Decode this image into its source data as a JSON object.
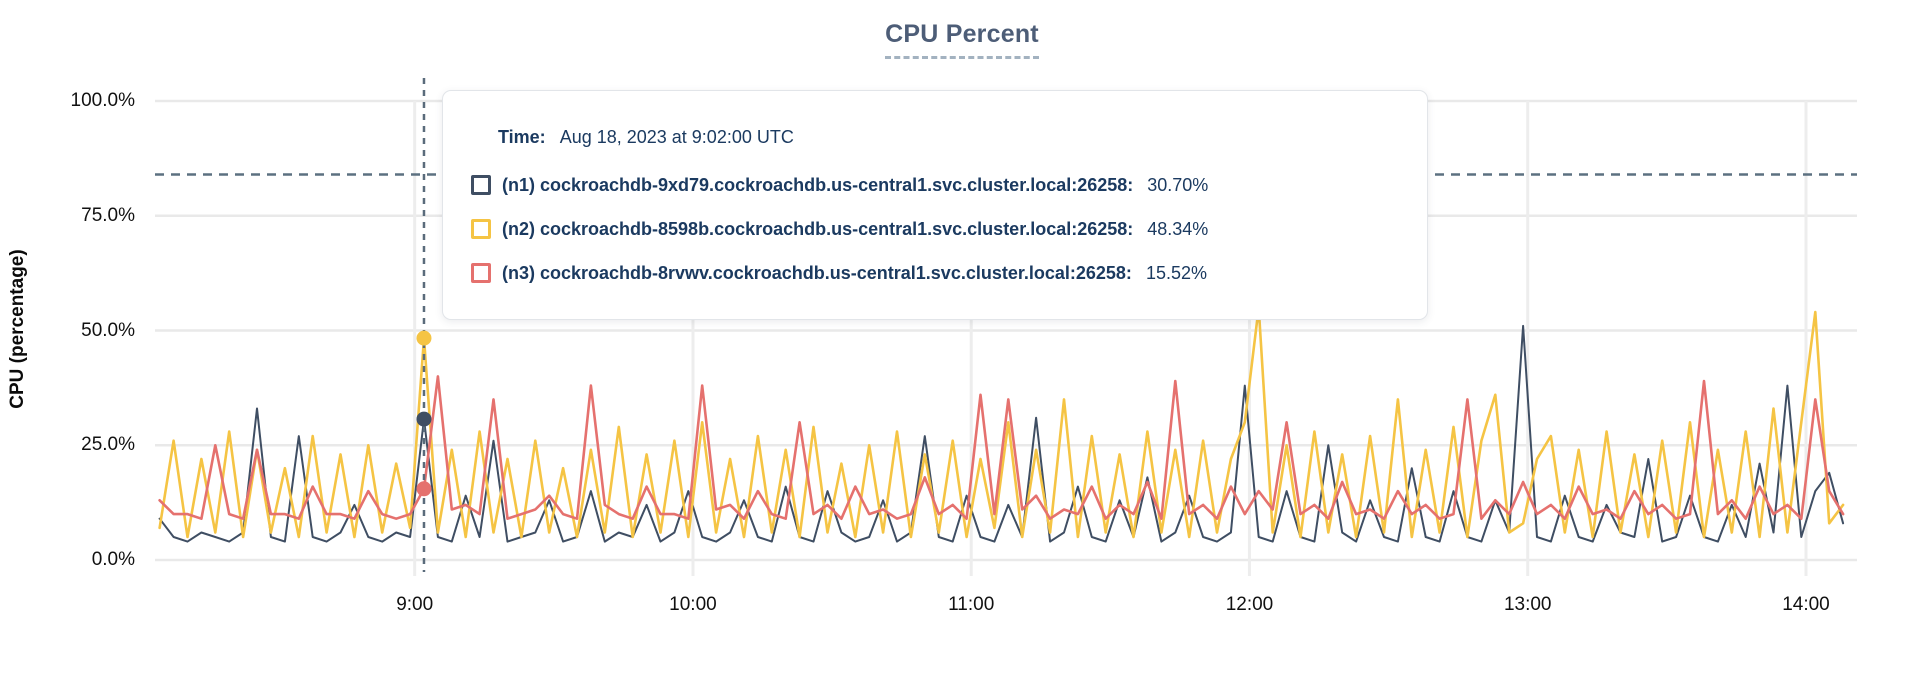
{
  "page": {
    "title": "CPU Percent"
  },
  "tooltip": {
    "time_label": "Time:",
    "time_value": "Aug 18, 2023 at 9:02:00 UTC",
    "rows": [
      {
        "label": "(n1) cockroachdb-9xd79.cockroachdb.us-central1.svc.cluster.local:26258:",
        "value": "30.70%"
      },
      {
        "label": "(n2) cockroachdb-8598b.cockroachdb.us-central1.svc.cluster.local:26258:",
        "value": "48.34%"
      },
      {
        "label": "(n3) cockroachdb-8rvwv.cockroachdb.us-central1.svc.cluster.local:26258:",
        "value": "15.52%"
      }
    ]
  },
  "chart_data": {
    "type": "line",
    "title": "CPU Percent",
    "xlabel": "",
    "ylabel": "CPU (percentage)",
    "ylim": [
      0,
      100
    ],
    "grid": true,
    "y_ticks": [
      {
        "value": 100,
        "label": "100.0%"
      },
      {
        "value": 75,
        "label": "75.0%"
      },
      {
        "value": 50,
        "label": "50.0%"
      },
      {
        "value": 25,
        "label": "25.0%"
      },
      {
        "value": 0,
        "label": "0.0%"
      }
    ],
    "x_ticks": [
      {
        "minutes": 540,
        "label": "9:00"
      },
      {
        "minutes": 600,
        "label": "10:00"
      },
      {
        "minutes": 660,
        "label": "11:00"
      },
      {
        "minutes": 720,
        "label": "12:00"
      },
      {
        "minutes": 780,
        "label": "13:00"
      },
      {
        "minutes": 840,
        "label": "14:00"
      }
    ],
    "x_domain_minutes": [
      484,
      851
    ],
    "x_start_minutes": 485,
    "x_step_minutes": 3,
    "threshold": {
      "value": 84,
      "style": "dashed",
      "color": "#5c7080"
    },
    "cursor": {
      "minutes": 542,
      "time": "9:02",
      "color": "#5a6b7b"
    },
    "legend_position": "tooltip",
    "series": [
      {
        "id": "n1",
        "name": "(n1) cockroachdb-9xd79.cockroachdb.us-central1.svc.cluster.local:26258",
        "color": "#3f4e63",
        "cursor_value": 30.7,
        "values": [
          9,
          5,
          4,
          6,
          5,
          4,
          6,
          33,
          5,
          4,
          27,
          5,
          4,
          6,
          12,
          5,
          4,
          6,
          5,
          30.7,
          5,
          4,
          14,
          5,
          26,
          4,
          5,
          6,
          13,
          4,
          5,
          15,
          4,
          6,
          5,
          12,
          4,
          6,
          15,
          5,
          4,
          6,
          13,
          5,
          4,
          16,
          5,
          4,
          15,
          6,
          4,
          5,
          13,
          4,
          6,
          27,
          5,
          4,
          14,
          5,
          4,
          12,
          5,
          31,
          4,
          6,
          16,
          5,
          4,
          13,
          5,
          18,
          4,
          6,
          14,
          5,
          4,
          6,
          38,
          5,
          4,
          15,
          5,
          4,
          25,
          6,
          4,
          13,
          5,
          4,
          20,
          5,
          4,
          15,
          5,
          4,
          13,
          6,
          51,
          5,
          4,
          14,
          5,
          4,
          12,
          6,
          5,
          22,
          4,
          5,
          14,
          5,
          4,
          12,
          5,
          21,
          6,
          38,
          5,
          15,
          19,
          8
        ]
      },
      {
        "id": "n2",
        "name": "(n2) cockroachdb-8598b.cockroachdb.us-central1.svc.cluster.local:26258",
        "color": "#f5c444",
        "cursor_value": 48.34,
        "values": [
          7,
          26,
          5,
          22,
          6,
          28,
          5,
          24,
          6,
          20,
          5,
          27,
          6,
          23,
          5,
          25,
          6,
          21,
          7,
          48.34,
          6,
          24,
          5,
          28,
          6,
          22,
          5,
          26,
          6,
          20,
          5,
          24,
          6,
          29,
          5,
          23,
          6,
          26,
          5,
          30,
          6,
          22,
          5,
          27,
          6,
          24,
          5,
          29,
          6,
          21,
          5,
          25,
          6,
          28,
          5,
          23,
          6,
          26,
          5,
          22,
          7,
          30,
          5,
          24,
          6,
          35,
          5,
          27,
          6,
          23,
          5,
          28,
          6,
          24,
          5,
          26,
          6,
          22,
          30,
          55,
          6,
          25,
          5,
          28,
          6,
          23,
          5,
          27,
          6,
          35,
          5,
          24,
          6,
          29,
          5,
          26,
          36,
          6,
          8,
          22,
          27,
          6,
          24,
          5,
          28,
          6,
          23,
          5,
          26,
          6,
          30,
          5,
          24,
          6,
          28,
          5,
          33,
          6,
          30,
          54,
          8,
          12
        ]
      },
      {
        "id": "n3",
        "name": "(n3) cockroachdb-8rvwv.cockroachdb.us-central1.svc.cluster.local:26258",
        "color": "#e5716e",
        "cursor_value": 15.52,
        "values": [
          13,
          10,
          10,
          9,
          25,
          10,
          9,
          24,
          10,
          10,
          9,
          16,
          10,
          10,
          9,
          15,
          10,
          9,
          10,
          15.52,
          40,
          11,
          12,
          10,
          35,
          9,
          10,
          11,
          14,
          10,
          9,
          38,
          12,
          10,
          9,
          16,
          10,
          10,
          9,
          38,
          11,
          12,
          9,
          15,
          10,
          9,
          30,
          10,
          12,
          9,
          16,
          10,
          11,
          9,
          10,
          18,
          10,
          12,
          9,
          36,
          10,
          35,
          11,
          14,
          9,
          11,
          10,
          16,
          9,
          12,
          10,
          17,
          9,
          39,
          10,
          12,
          9,
          16,
          10,
          15,
          11,
          30,
          10,
          12,
          9,
          17,
          10,
          11,
          9,
          15,
          10,
          12,
          9,
          10,
          35,
          9,
          13,
          10,
          17,
          10,
          12,
          9,
          16,
          10,
          11,
          9,
          15,
          10,
          12,
          9,
          10,
          39,
          10,
          13,
          9,
          16,
          10,
          12,
          9,
          35,
          15,
          10
        ]
      }
    ]
  }
}
